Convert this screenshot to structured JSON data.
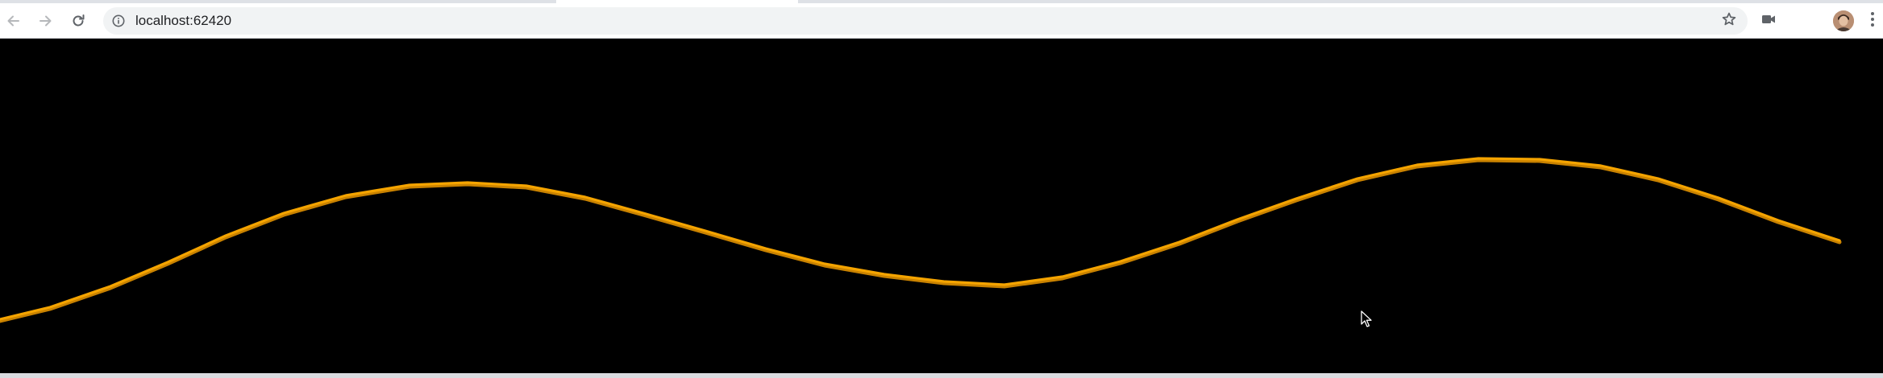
{
  "browser": {
    "url": "localhost:62420",
    "icons": {
      "back": "arrow-left-icon",
      "forward": "arrow-right-icon",
      "reload": "reload-icon",
      "site_info": "info-icon",
      "bookmark": "star-icon",
      "camera": "video-camera-icon",
      "profile": "avatar",
      "menu": "kebab-menu-icon"
    }
  },
  "canvas": {
    "background": "#000000",
    "curve_color": "#f5a400",
    "curve_shadow_color": "#c98200"
  }
}
